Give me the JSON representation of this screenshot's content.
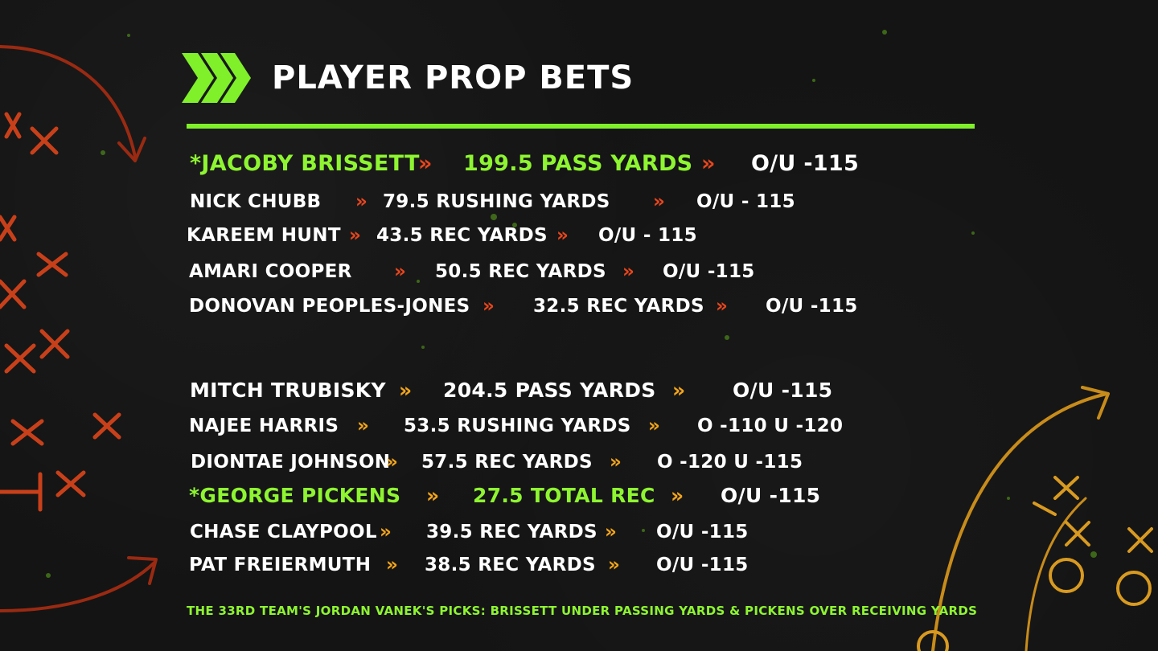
{
  "title": "PLAYER PROP BETS",
  "colors": {
    "accent": "#8ef531",
    "arrow_red": "#e8461c",
    "arrow_orange": "#f2a51a",
    "text": "#ffffff",
    "background": "#141414"
  },
  "rows": [
    {
      "player": "*JACOBY BRISSETT",
      "line": "199.5 PASS YARDS",
      "odds": "O/U -115",
      "highlight": true
    },
    {
      "player": "NICK CHUBB",
      "line": "79.5 RUSHING YARDS",
      "odds": "O/U - 115"
    },
    {
      "player": "KAREEM HUNT",
      "line": "43.5 REC YARDS",
      "odds": "O/U - 115"
    },
    {
      "player": "AMARI COOPER",
      "line": "50.5 REC YARDS",
      "odds": "O/U -115"
    },
    {
      "player": "DONOVAN PEOPLES-JONES",
      "line": "32.5 REC YARDS",
      "odds": "O/U -115"
    },
    {
      "player": "MITCH TRUBISKY",
      "line": "204.5 PASS YARDS",
      "odds": "O/U -115"
    },
    {
      "player": "NAJEE HARRIS",
      "line": "53.5 RUSHING YARDS",
      "odds": "O -110 U -120"
    },
    {
      "player": "DIONTAE JOHNSON",
      "line": "57.5 REC YARDS",
      "odds": "O -120 U -115"
    },
    {
      "player": "*GEORGE PICKENS",
      "line": "27.5 TOTAL REC",
      "odds": "O/U -115",
      "highlight": true
    },
    {
      "player": "CHASE CLAYPOOL",
      "line": "39.5 REC YARDS",
      "odds": "O/U -115"
    },
    {
      "player": "PAT FREIERMUTH",
      "line": "38.5 REC YARDS",
      "odds": "O/U -115"
    }
  ],
  "separator_glyph": "»",
  "footer": "THE 33RD TEAM'S JORDAN VANEK'S PICKS: BRISSETT UNDER PASSING YARDS & PICKENS OVER RECEIVING YARDS"
}
